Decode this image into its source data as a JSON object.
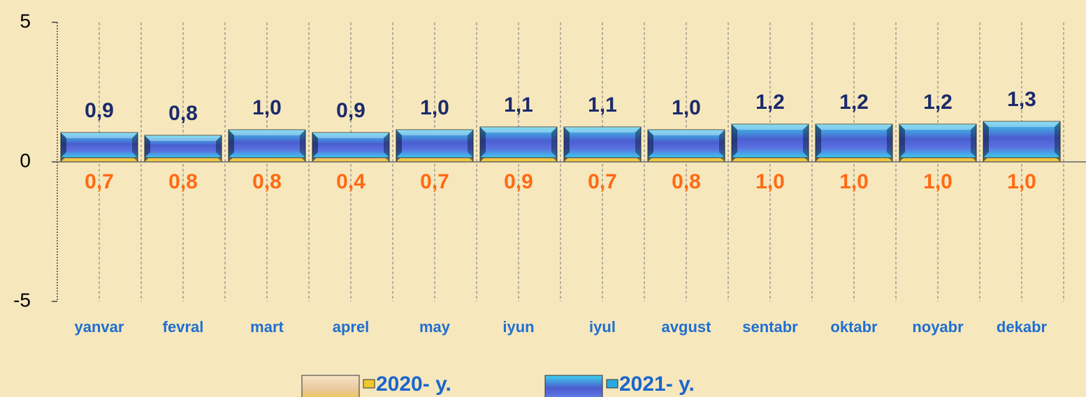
{
  "chart_data": {
    "type": "bar",
    "categories": [
      "yanvar",
      "fevral",
      "mart",
      "aprel",
      "may",
      "iyun",
      "iyul",
      "avgust",
      "sentabr",
      "oktabr",
      "noyabr",
      "dekabr"
    ],
    "series": [
      {
        "name": "2020- y.",
        "color": "#e9c79c",
        "values": [
          0.7,
          0.8,
          0.8,
          0.4,
          0.7,
          0.9,
          0.7,
          0.8,
          1.0,
          1.0,
          1.0,
          1.0
        ],
        "value_labels": [
          "0,7",
          "0,8",
          "0,8",
          "0,4",
          "0,7",
          "0,9",
          "0,7",
          "0,8",
          "1,0",
          "1,0",
          "1,0",
          "1,0"
        ]
      },
      {
        "name": "2021- y.",
        "color": "#1e8fd6",
        "values": [
          0.9,
          0.8,
          1.0,
          0.9,
          1.0,
          1.1,
          1.1,
          1.0,
          1.2,
          1.2,
          1.2,
          1.3
        ],
        "value_labels": [
          "0,9",
          "0,8",
          "1,0",
          "0,9",
          "1,0",
          "1,1",
          "1,1",
          "1,0",
          "1,2",
          "1,2",
          "1,2",
          "1,3"
        ]
      }
    ],
    "ylim": [
      -5,
      5
    ],
    "yticks": [
      -5,
      0,
      5
    ],
    "grid": true,
    "legend": "bottom"
  }
}
